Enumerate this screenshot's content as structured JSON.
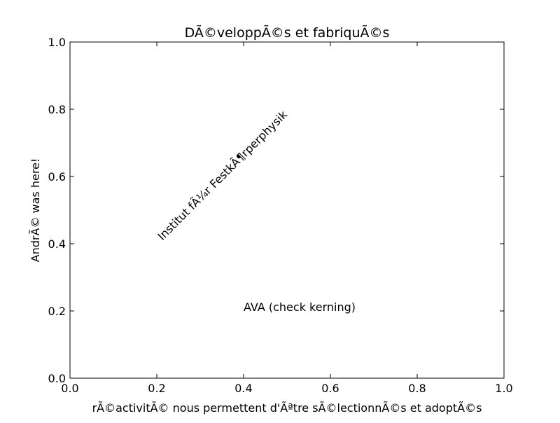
{
  "chart_data": {
    "type": "text",
    "title": "DÃ©veloppÃ©s et fabriquÃ©s",
    "xlabel": "rÃ©activitÃ© nous permettent d'Ãªtre sÃ©lectionnÃ©s et adoptÃ©s",
    "ylabel": "AndrÃ© was here!",
    "xlim": [
      0,
      1
    ],
    "ylim": [
      0,
      1
    ],
    "xticks": [
      {
        "value": 0,
        "label": "0.0"
      },
      0.2,
      0.4,
      0.6,
      0.8,
      {
        "value": 1,
        "label": "1.0"
      }
    ],
    "yticks": [
      {
        "value": 0,
        "label": "0.0"
      },
      0.2,
      0.4,
      0.6,
      0.8,
      {
        "value": 1,
        "label": "1.0"
      }
    ],
    "annotations": [
      {
        "text": "Institut fÃ¼r FestkÃ¶rperphysik",
        "x": 0.2,
        "y": 0.4,
        "rotation": 45
      },
      {
        "text": "AVA (check kerning)",
        "x": 0.4,
        "y": 0.2,
        "rotation": 0
      }
    ]
  }
}
